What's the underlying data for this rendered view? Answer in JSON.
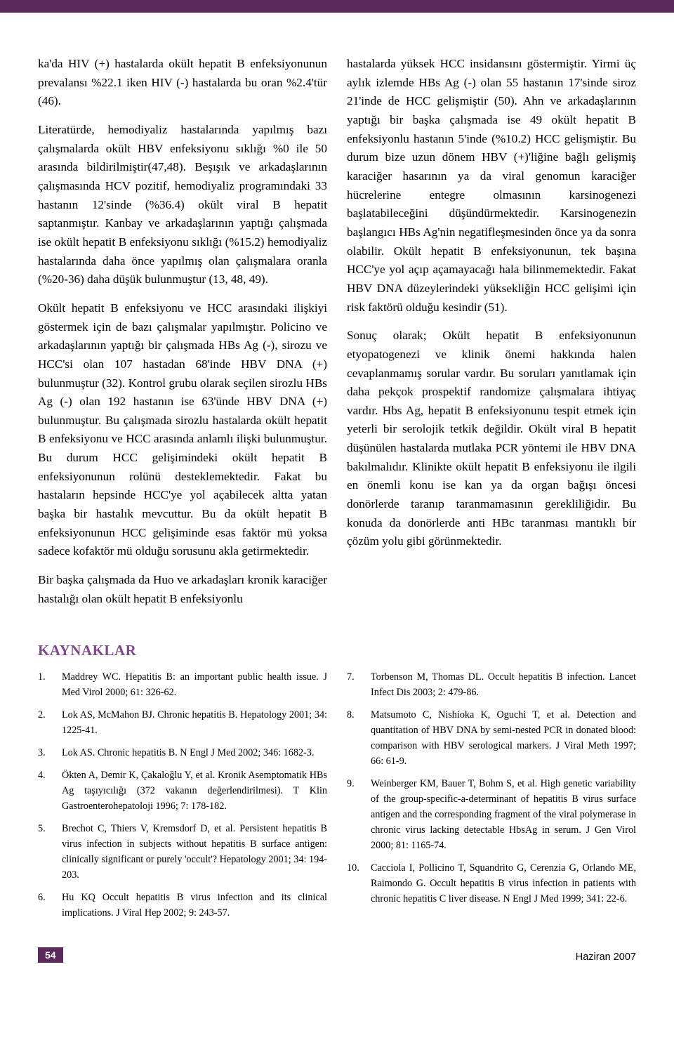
{
  "body": {
    "left": {
      "p1": "ka'da HIV (+) hastalarda okült hepatit B enfeksiyonunun prevalansı %22.1 iken HIV (-) hastalarda bu oran %2.4'tür (46).",
      "p2": "Literatürde, hemodiyaliz hastalarında yapılmış bazı çalışmalarda okült HBV enfeksiyonu sıklığı %0 ile 50 arasında bildirilmiştir(47,48). Beşışık ve arkadaşlarının çalışmasında HCV pozitif, hemodiyaliz programındaki 33 hastanın 12'sinde (%36.4) okült viral B hepatit saptanmıştır. Kanbay ve arkadaşlarının yaptığı çalışmada ise okült hepatit B enfeksiyonu sıklığı (%15.2) hemodiyaliz hastalarında daha önce yapılmış olan çalışmalara oranla (%20-36) daha düşük bulunmuştur (13, 48, 49).",
      "p3": "Okült hepatit B enfeksiyonu ve HCC arasındaki ilişkiyi göstermek için de bazı çalışmalar yapılmıştır. Policino ve arkadaşlarının yaptığı bir çalışmada HBs Ag (-), sirozu ve HCC'si olan 107 hastadan 68'inde HBV DNA (+) bulunmuştur (32). Kontrol grubu olarak seçilen sirozlu HBs Ag (-) olan 192 hastanın ise 63'ünde HBV DNA (+) bulunmuştur. Bu çalışmada sirozlu hastalarda okült hepatit B enfeksiyonu ve HCC arasında anlamlı ilişki bulunmuştur. Bu durum HCC gelişimindeki okült hepatit B enfeksiyonunun rolünü desteklemektedir. Fakat bu hastaların hepsinde HCC'ye yol açabilecek altta yatan başka bir hastalık mevcuttur. Bu da okült hepatit B enfeksiyonunun HCC gelişiminde esas faktör mü yoksa sadece kofaktör mü olduğu sorusunu akla getirmektedir.",
      "p4": "Bir başka çalışmada da Huo ve arkadaşları kronik karaciğer hastalığı olan okült hepatit B enfeksiyonlu"
    },
    "right": {
      "p1": "hastalarda yüksek HCC insidansını göstermiştir. Yirmi üç aylık izlemde HBs Ag (-) olan 55 hastanın 17'sinde siroz 21'inde de HCC gelişmiştir (50). Ahn ve arkadaşlarının yaptığı bir başka çalışmada ise 49 okült hepatit B enfeksiyonlu hastanın 5'inde (%10.2) HCC gelişmiştir. Bu durum bize uzun dönem HBV (+)'liğine bağlı gelişmiş karaciğer hasarının ya da viral genomun karaciğer hücrelerine entegre olmasının karsinogenezi başlatabileceğini düşündürmektedir. Karsinogenezin başlangıcı HBs Ag'nin negatifleşmesinden önce ya da sonra olabilir. Okült hepatit B enfeksiyonunun, tek başına HCC'ye yol açıp açamayacağı hala bilinmemektedir. Fakat HBV DNA düzeylerindeki yüksekliğin HCC gelişimi için risk faktörü olduğu kesindir (51).",
      "p2": "Sonuç olarak; Okült hepatit B enfeksiyonunun etyopatogenezi ve klinik önemi hakkında halen cevaplanmamış sorular vardır. Bu soruları yanıtlamak için daha pekçok prospektif randomize çalışmalara ihtiyaç vardır. Hbs Ag, hepatit B enfeksiyonunu tespit etmek için yeterli bir serolojik tetkik değildir. Okült viral B hepatit düşünülen hastalarda mutlaka PCR yöntemi ile HBV DNA bakılmalıdır. Klinikte okült hepatit B enfeksiyonu ile ilgili en önemli konu ise kan ya da organ bağışı öncesi donörlerde taranıp taranmamasının gerekliliğidir. Bu konuda da donörlerde anti HBc taranması mantıklı bir çözüm yolu gibi görünmektedir."
    }
  },
  "refs_heading": "KAYNAKLAR",
  "refs": {
    "left": [
      {
        "n": "1.",
        "t": "Maddrey WC. Hepatitis B: an important public health issue. J Med Virol 2000; 61: 326-62."
      },
      {
        "n": "2.",
        "t": "Lok AS, McMahon BJ. Chronic hepatitis B. Hepatology 2001; 34: 1225-41."
      },
      {
        "n": "3.",
        "t": "Lok AS. Chronic hepatitis B. N Engl J Med 2002; 346: 1682-3."
      },
      {
        "n": "4.",
        "t": "Ökten A, Demir K, Çakaloğlu Y, et al. Kronik Asemptomatik HBs Ag taşıyıcılığı (372 vakanın değerlendirilmesi). T Klin Gastroenterohepatoloji 1996; 7: 178-182."
      },
      {
        "n": "5.",
        "t": "Brechot C, Thiers V, Kremsdorf D, et al. Persistent hepatitis B virus infection in subjects without hepatitis B surface antigen: clinically significant or purely 'occult'? Hepatology 2001; 34: 194-203."
      },
      {
        "n": "6.",
        "t": "Hu KQ Occult hepatitis B virus infection and its clinical implications. J Viral Hep 2002; 9: 243-57."
      }
    ],
    "right": [
      {
        "n": "7.",
        "t": "Torbenson M, Thomas DL. Occult hepatitis B infection. Lancet Infect Dis 2003; 2: 479-86."
      },
      {
        "n": "8.",
        "t": "Matsumoto C, Nishioka K, Oguchi T, et al. Detection and quantitation of HBV DNA by semi-nested PCR in donated blood: comparison with HBV serological markers. J Viral Meth 1997; 66: 61-9."
      },
      {
        "n": "9.",
        "t": "Weinberger KM, Bauer T, Bohm S, et al. High genetic variability of the group-specific-a-determinant of hepatitis B virus surface antigen and the corresponding fragment of the viral polymerase in chronic virus lacking detectable HbsAg in serum. J Gen Virol 2000; 81: 1165-74."
      },
      {
        "n": "10.",
        "t": "Cacciola I, Pollicino T, Squandrito G, Cerenzia G, Orlando ME, Raimondo G. Occult hepatitis B virus infection in patients with chronic hepatitis C liver disease. N Engl J Med 1999; 341: 22-6."
      }
    ]
  },
  "footer": {
    "page": "54",
    "date": "Haziran 2007"
  },
  "colors": {
    "accent": "#5a2a5d",
    "heading": "#7e4a8a"
  }
}
